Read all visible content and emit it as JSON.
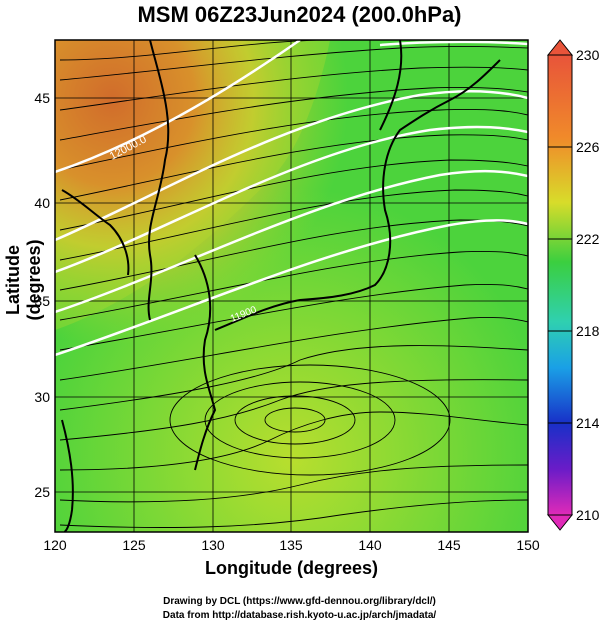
{
  "title": "MSM 06Z23Jun2024 (200.0hPa)",
  "xlabel": "Longitude (degrees)",
  "ylabel": "Latitude  (degrees)",
  "credit_line1": "Drawing by DCL (https://www.gfd-dennou.org/library/dcl/)",
  "credit_line2": "Data from http://database.rish.kyoto-u.ac.jp/arch/jmadata/",
  "x_ticks": [
    "120",
    "125",
    "130",
    "135",
    "140",
    "145",
    "150"
  ],
  "y_ticks": [
    "25",
    "30",
    "35",
    "40",
    "45"
  ],
  "colorbar_ticks": [
    "230",
    "226",
    "222",
    "218",
    "214",
    "210"
  ],
  "contour_labels": [
    "12000.0",
    "11900"
  ],
  "colors": {
    "warm": "#d9452a",
    "mid": "#9fd82a",
    "green": "#2ec94a",
    "contour": "#ffffff"
  },
  "chart_data": {
    "type": "heatmap",
    "title": "MSM 06Z23Jun2024 (200.0hPa)",
    "xlabel": "Longitude (degrees)",
    "ylabel": "Latitude  (degrees)",
    "xlim": [
      120,
      150
    ],
    "ylim": [
      22.5,
      48
    ],
    "x_ticks": [
      120,
      125,
      130,
      135,
      140,
      145,
      150
    ],
    "y_ticks": [
      25,
      30,
      35,
      40,
      45
    ],
    "colorbar": {
      "min": 210,
      "max": 230,
      "ticks": [
        230,
        226,
        222,
        218,
        214,
        210
      ]
    },
    "grid": true,
    "overlay": "streamlines + white height contours"
  }
}
